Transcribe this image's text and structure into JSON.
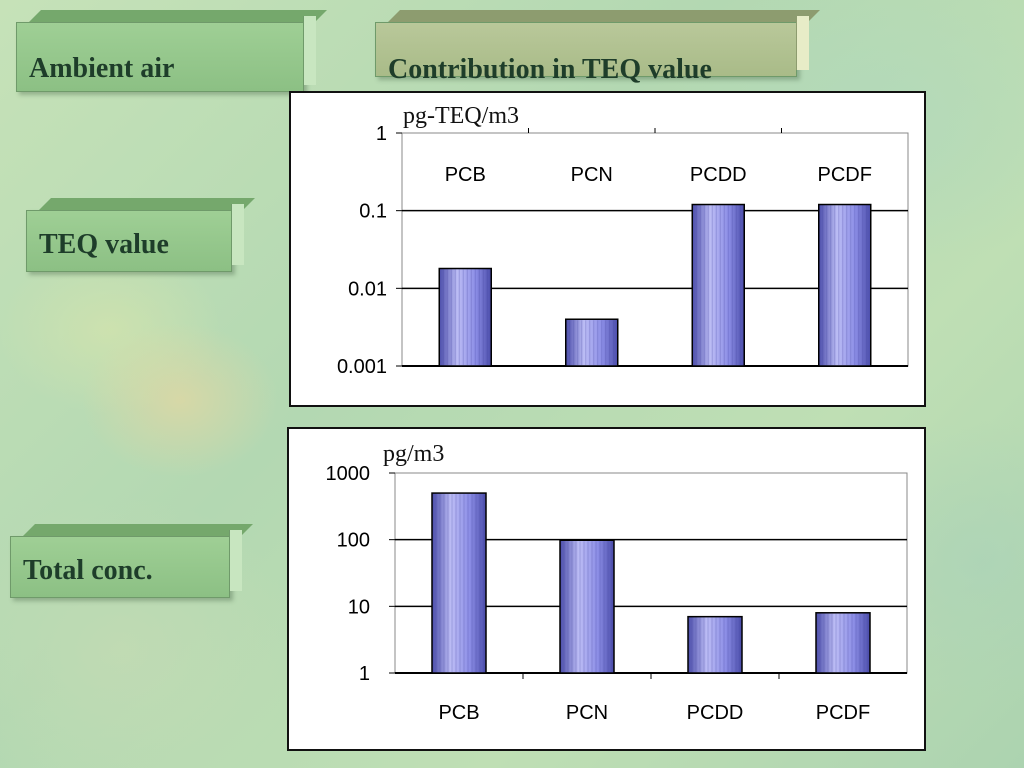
{
  "labels": {
    "ambient_air": "Ambient air",
    "contribution": "Contribution in TEQ value",
    "teq_value": "TEQ value",
    "total_conc": "Total conc."
  },
  "colors": {
    "bar": "#8c8ee6",
    "bar_dark": "#4b4daa",
    "bar_light": "#bcbdf5"
  },
  "chart_data": [
    {
      "type": "bar",
      "unit_label": "pg-TEQ/m3",
      "categories": [
        "PCB",
        "PCN",
        "PCDD",
        "PCDF"
      ],
      "values": [
        0.018,
        0.004,
        0.12,
        0.12
      ],
      "y_scale": "log",
      "ylim": [
        0.001,
        1
      ],
      "y_ticks": [
        "0.001",
        "0.01",
        "0.1",
        "1"
      ],
      "category_labels_position": "top",
      "grid": true
    },
    {
      "type": "bar",
      "unit_label": "pg/m3",
      "categories": [
        "PCB",
        "PCN",
        "PCDD",
        "PCDF"
      ],
      "values": [
        500,
        98,
        7,
        8
      ],
      "y_scale": "log",
      "ylim": [
        1,
        1000
      ],
      "y_ticks": [
        "1",
        "10",
        "100",
        "1000"
      ],
      "category_labels_position": "bottom",
      "grid": true
    }
  ]
}
